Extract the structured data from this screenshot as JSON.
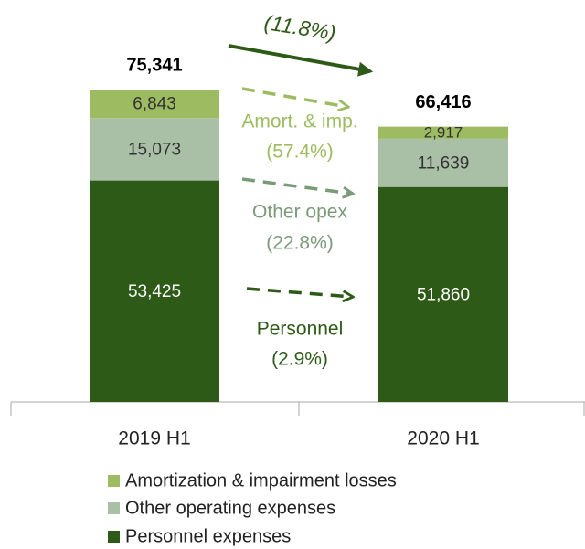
{
  "chart_data": {
    "type": "stacked_bar",
    "categories": [
      "2019 H1",
      "2020 H1"
    ],
    "series": [
      {
        "name": "Personnel expenses",
        "color": "#2e5a17",
        "values": [
          53425,
          51860
        ],
        "value_labels": [
          "53,425",
          "51,860"
        ]
      },
      {
        "name": "Other operating expenses",
        "color": "#a9bfa6",
        "values": [
          15073,
          11639
        ],
        "value_labels": [
          "15,073",
          "11,639"
        ]
      },
      {
        "name": "Amortization & impairment losses",
        "color": "#9dbb61",
        "values": [
          6843,
          2917
        ],
        "value_labels": [
          "6,843",
          "2,917"
        ]
      }
    ],
    "totals": [
      75341,
      66416
    ],
    "total_labels": [
      "75,341",
      "66,416"
    ],
    "ylim": [
      0,
      80000
    ],
    "annotations": [
      {
        "text": "(11.8%)",
        "color": "#2e5a17"
      },
      {
        "text": "Amort. & imp.",
        "color": "#9dbb61"
      },
      {
        "text": "(57.4%)",
        "color": "#9dbb61"
      },
      {
        "text": "Other opex",
        "color": "#7a9a78"
      },
      {
        "text": "(22.8%)",
        "color": "#7a9a78"
      },
      {
        "text": "Personnel",
        "color": "#2e5a17"
      },
      {
        "text": "(2.9%)",
        "color": "#2e5a17"
      }
    ]
  }
}
